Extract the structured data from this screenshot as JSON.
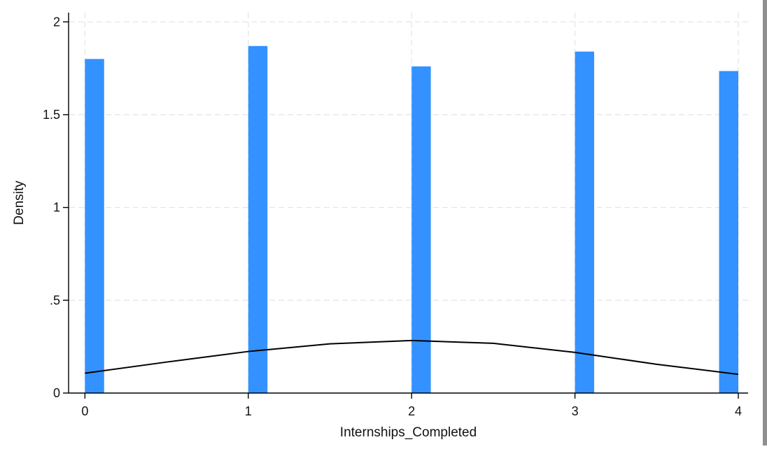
{
  "chart_data": {
    "type": "bar",
    "title": "",
    "xlabel": "Internships_Completed",
    "ylabel": "Density",
    "xlim": [
      -0.1,
      4.06
    ],
    "ylim": [
      0,
      2.05
    ],
    "grid": true,
    "x_ticks": [
      {
        "value": 0,
        "label": "0"
      },
      {
        "value": 1,
        "label": "1"
      },
      {
        "value": 2,
        "label": "2"
      },
      {
        "value": 3,
        "label": "3"
      },
      {
        "value": 4,
        "label": "4"
      }
    ],
    "y_ticks": [
      {
        "value": 0,
        "label": "0"
      },
      {
        "value": 0.5,
        "label": ".5"
      },
      {
        "value": 1,
        "label": "1"
      },
      {
        "value": 1.5,
        "label": "1.5"
      },
      {
        "value": 2,
        "label": "2"
      }
    ],
    "series": [
      {
        "type": "histogram",
        "bins": [
          {
            "start": 0.0,
            "end": 0.1176,
            "density": 1.8
          },
          {
            "start": 1.0,
            "end": 1.1176,
            "density": 1.87
          },
          {
            "start": 2.0,
            "end": 2.1176,
            "density": 1.76
          },
          {
            "start": 3.0,
            "end": 3.1176,
            "density": 1.84
          },
          {
            "start": 3.8824,
            "end": 4.0,
            "density": 1.735
          }
        ],
        "color": "#3392ff"
      },
      {
        "type": "line",
        "x": [
          0,
          0.5,
          1,
          1.5,
          2,
          2.5,
          3,
          3.5,
          4
        ],
        "y": [
          0.107,
          0.167,
          0.224,
          0.265,
          0.283,
          0.268,
          0.219,
          0.155,
          0.101
        ],
        "color": "#000000"
      }
    ],
    "colors": {
      "bar": "#3392ff",
      "curve": "#000000",
      "grid": "#e6e6e6",
      "axis": "#000000",
      "strip": "#8f8f8f"
    }
  }
}
